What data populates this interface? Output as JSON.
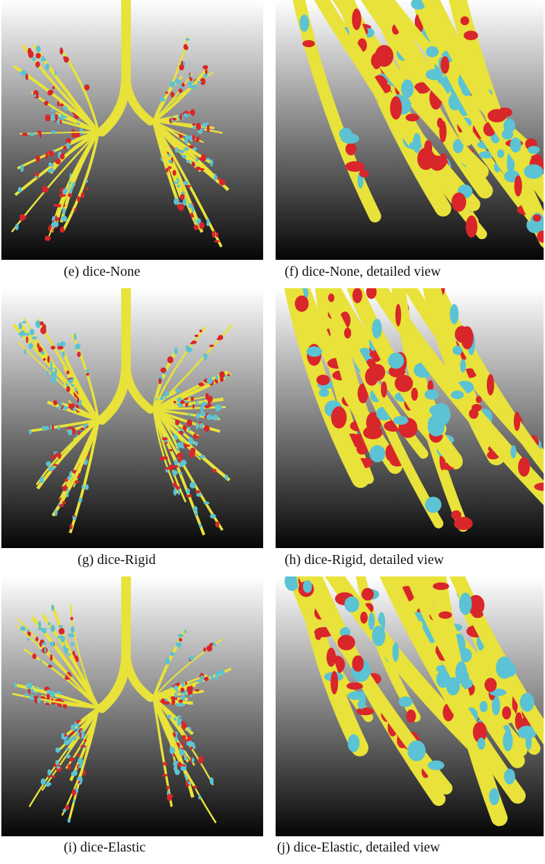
{
  "figure": {
    "panels": [
      {
        "caption": "(e) dice-None"
      },
      {
        "caption": "(f) dice-None, detailed view"
      },
      {
        "caption": "(g) dice-Rigid"
      },
      {
        "caption": "(h) dice-Rigid, detailed view"
      },
      {
        "caption": "(i) dice-Elastic"
      },
      {
        "caption": "(j) dice-Elastic, detailed view"
      }
    ]
  }
}
